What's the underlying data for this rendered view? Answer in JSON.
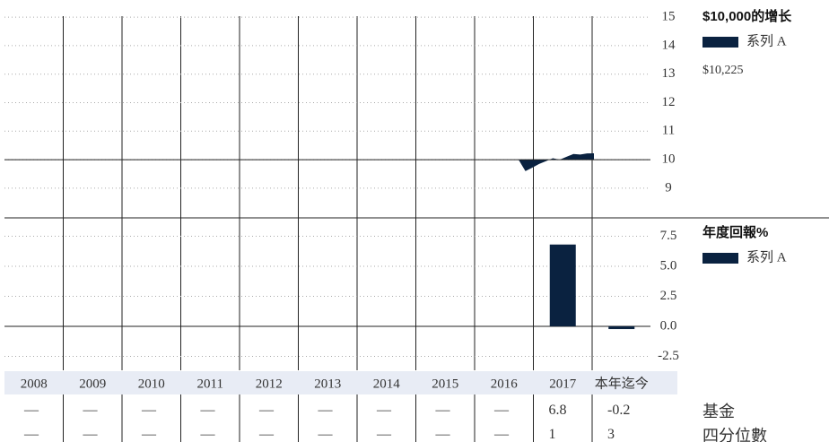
{
  "chart_data": [
    {
      "type": "area",
      "title": "$10,000的增长",
      "series": [
        {
          "name": "系列 A",
          "color": "#0a2240",
          "values": [
            10.0,
            9.6,
            9.72,
            9.85,
            9.95,
            10.05,
            10.0,
            10.1,
            10.2,
            10.18,
            10.22,
            10.225
          ]
        }
      ],
      "value_label": "$10,225",
      "baseline": 10,
      "ylim": [
        7.96,
        15.6
      ],
      "yticks": [
        9,
        10,
        11,
        12,
        13,
        14,
        15
      ],
      "grid": true
    },
    {
      "type": "bar",
      "title": "年度回報%",
      "series": [
        {
          "name": "系列 A",
          "color": "#0a2240",
          "values": [
            null,
            null,
            null,
            null,
            null,
            null,
            null,
            null,
            null,
            6.81,
            -0.23
          ]
        }
      ],
      "categories": [
        "2008",
        "2009",
        "2010",
        "2011",
        "2012",
        "2013",
        "2014",
        "2015",
        "2016",
        "2017",
        "本年迄今"
      ],
      "ylim": [
        -3.66,
        9.03
      ],
      "yticks": [
        -2.5,
        {
          "value": 0,
          "label": "0.0"
        },
        2.5,
        {
          "value": 5,
          "label": "5.0"
        },
        7.5
      ],
      "grid": true
    }
  ],
  "table": {
    "rows": [
      {
        "label": "基金",
        "values": [
          "—",
          "—",
          "—",
          "—",
          "—",
          "—",
          "—",
          "—",
          "—",
          "6.81",
          "-0.23"
        ]
      },
      {
        "label": "四分位數",
        "values": [
          "—",
          "—",
          "—",
          "—",
          "—",
          "—",
          "—",
          "—",
          "—"
        ]
      }
    ]
  }
}
